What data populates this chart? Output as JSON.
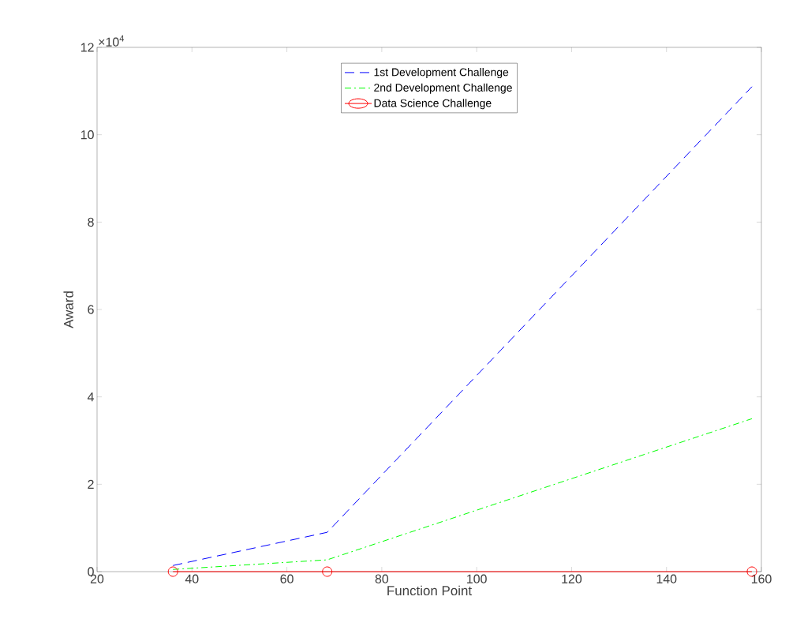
{
  "chart_data": {
    "type": "line",
    "xlabel": "Function Point",
    "ylabel": "Award",
    "x": [
      36,
      68.5,
      158
    ],
    "series": [
      {
        "name": "1st Development Challenge",
        "color": "#0000ff",
        "line_style": "dashed",
        "marker": "none",
        "values": [
          0.14,
          0.9,
          11.1
        ]
      },
      {
        "name": "2nd Development Challenge",
        "color": "#00ff00",
        "line_style": "dashdot",
        "marker": "none",
        "values": [
          0.05,
          0.27,
          3.5
        ]
      },
      {
        "name": "Data Science Challenge",
        "color": "#ff0000",
        "line_style": "solid",
        "marker": "circle",
        "values": [
          0,
          0,
          0
        ]
      }
    ],
    "xlim": [
      20,
      160
    ],
    "xticks": [
      20,
      40,
      60,
      80,
      100,
      120,
      140,
      160
    ],
    "ylim": [
      0,
      12
    ],
    "yticks": [
      0,
      2,
      4,
      6,
      8,
      10,
      12
    ],
    "annotations": [
      "×10$^{4}$"
    ],
    "legend": "top",
    "grid": false
  }
}
